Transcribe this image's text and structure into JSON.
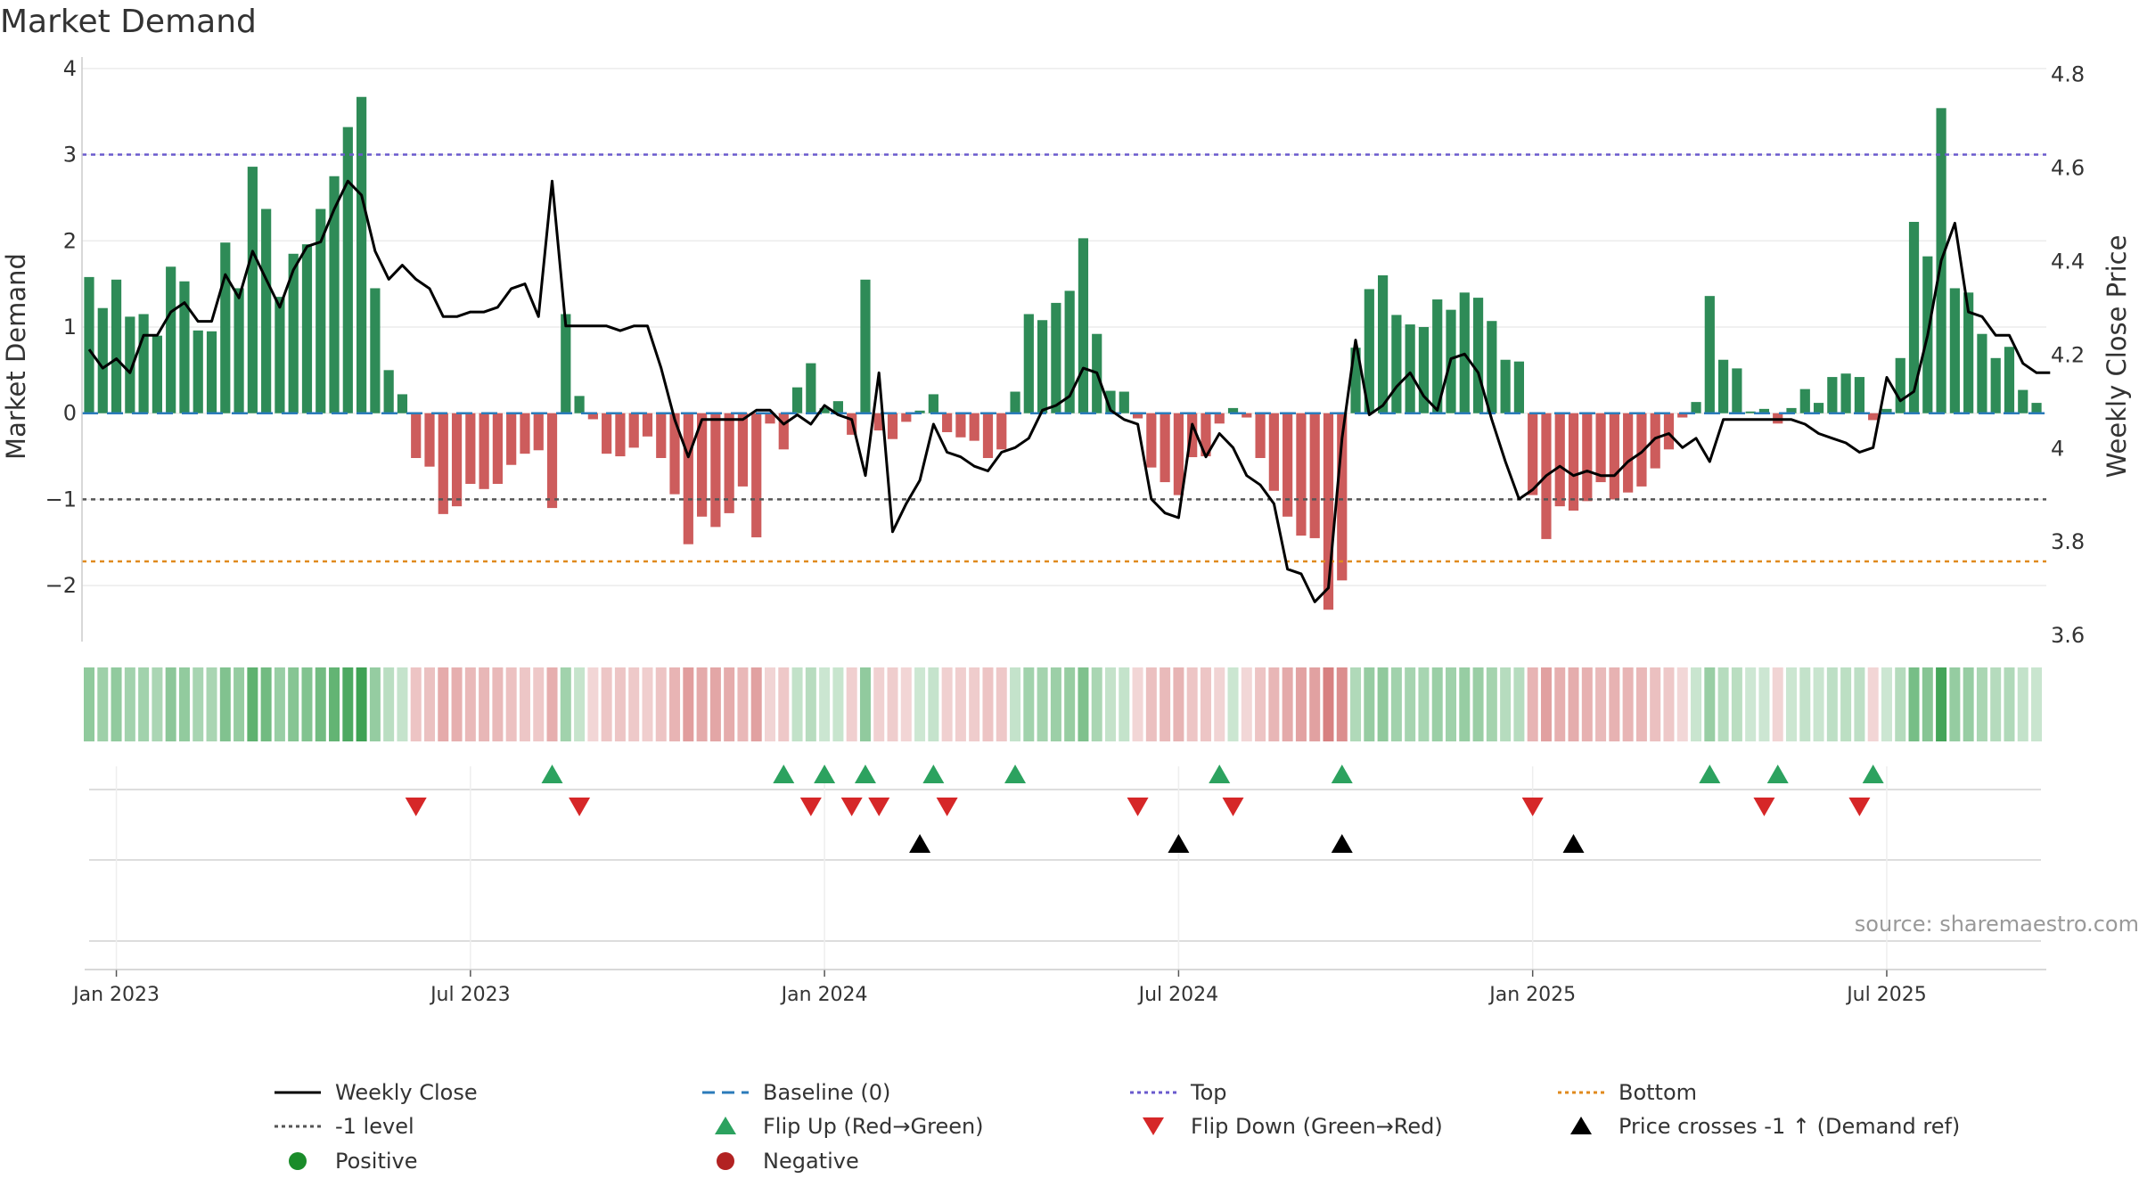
{
  "title": "Market Demand",
  "source": "source: sharemaestro.com",
  "chart_data": {
    "type": "bar+line",
    "title": "Market Demand",
    "ylabel_left": "Market Demand",
    "ylabel_right": "Weekly Close Price",
    "ylim_left": [
      -2.65,
      4.05
    ],
    "ylim_right": [
      3.585,
      4.82
    ],
    "yticks_left": [
      4,
      3,
      2,
      1,
      0,
      -1,
      -2
    ],
    "yticks_left_labels": [
      "4",
      "3",
      "2",
      "1",
      "0",
      "−1",
      "−2"
    ],
    "yticks_right": [
      4.8,
      4.6,
      4.4,
      4.2,
      4.0,
      3.8,
      3.6
    ],
    "yticks_right_labels": [
      "4.8",
      "4.6",
      "4.4",
      "4.2",
      "4",
      "3.8",
      "3.6"
    ],
    "xticks": [
      "Jan 2023",
      "Jul 2023",
      "Jan 2024",
      "Jul 2024",
      "Jan 2025",
      "Jul 2025"
    ],
    "xticks_week": [
      2,
      28,
      54,
      80,
      106,
      132
    ],
    "reference_lines": {
      "top": 3.0,
      "baseline": 0,
      "minus_one": -1,
      "bottom": -1.72
    },
    "demand": [
      1.58,
      1.22,
      1.55,
      1.12,
      1.15,
      0.9,
      1.7,
      1.53,
      0.96,
      0.95,
      1.98,
      1.45,
      2.86,
      2.37,
      1.35,
      1.85,
      1.96,
      2.37,
      2.75,
      3.32,
      3.67,
      1.45,
      0.5,
      0.22,
      -0.52,
      -0.62,
      -1.17,
      -1.08,
      -0.82,
      -0.88,
      -0.82,
      -0.6,
      -0.47,
      -0.43,
      -1.1,
      1.15,
      0.2,
      -0.07,
      -0.47,
      -0.5,
      -0.4,
      -0.27,
      -0.52,
      -0.94,
      -1.52,
      -1.2,
      -1.32,
      -1.16,
      -0.85,
      -1.44,
      -0.12,
      -0.42,
      0.3,
      0.58,
      0.06,
      0.14,
      -0.25,
      1.55,
      -0.2,
      -0.3,
      -0.1,
      0.03,
      0.22,
      -0.22,
      -0.28,
      -0.32,
      -0.52,
      -0.42,
      0.25,
      1.15,
      1.08,
      1.28,
      1.42,
      2.03,
      0.92,
      0.26,
      0.25,
      -0.06,
      -0.63,
      -0.8,
      -0.95,
      -0.51,
      -0.5,
      -0.12,
      0.06,
      -0.05,
      -0.52,
      -0.9,
      -1.2,
      -1.42,
      -1.45,
      -2.28,
      -1.94,
      0.76,
      1.44,
      1.6,
      1.14,
      1.03,
      1.0,
      1.32,
      1.2,
      1.4,
      1.34,
      1.07,
      0.62,
      0.6,
      -0.95,
      -1.46,
      -1.08,
      -1.13,
      -1.02,
      -0.8,
      -1.0,
      -0.92,
      -0.85,
      -0.64,
      -0.42,
      -0.05,
      0.13,
      1.36,
      0.62,
      0.52,
      0.02,
      0.05,
      -0.12,
      0.06,
      0.28,
      0.12,
      0.42,
      0.46,
      0.42,
      -0.08,
      0.05,
      0.64,
      2.22,
      1.82,
      3.54,
      1.45,
      1.4,
      0.92,
      0.64,
      0.77,
      0.27,
      0.12
    ],
    "weekly_close": [
      4.21,
      4.17,
      4.19,
      4.16,
      4.24,
      4.24,
      4.29,
      4.31,
      4.27,
      4.27,
      4.37,
      4.32,
      4.42,
      4.36,
      4.3,
      4.38,
      4.43,
      4.44,
      4.51,
      4.57,
      4.54,
      4.42,
      4.36,
      4.39,
      4.36,
      4.34,
      4.28,
      4.28,
      4.29,
      4.29,
      4.3,
      4.34,
      4.35,
      4.28,
      4.57,
      4.26,
      4.26,
      4.26,
      4.26,
      4.25,
      4.26,
      4.26,
      4.17,
      4.06,
      3.98,
      4.06,
      4.06,
      4.06,
      4.06,
      4.08,
      4.08,
      4.05,
      4.07,
      4.05,
      4.09,
      4.07,
      4.06,
      3.94,
      4.16,
      3.82,
      3.88,
      3.93,
      4.05,
      3.99,
      3.98,
      3.96,
      3.95,
      3.99,
      4.0,
      4.02,
      4.08,
      4.09,
      4.11,
      4.17,
      4.16,
      4.08,
      4.06,
      4.05,
      3.89,
      3.86,
      3.85,
      4.05,
      3.98,
      4.03,
      4.0,
      3.94,
      3.92,
      3.88,
      3.74,
      3.73,
      3.67,
      3.7,
      4.02,
      4.23,
      4.07,
      4.09,
      4.13,
      4.16,
      4.11,
      4.08,
      4.19,
      4.2,
      4.16,
      4.06,
      3.97,
      3.89,
      3.91,
      3.94,
      3.96,
      3.94,
      3.95,
      3.94,
      3.94,
      3.97,
      3.99,
      4.02,
      4.03,
      4.0,
      4.02,
      3.97,
      4.06,
      4.06,
      4.06,
      4.06,
      4.06,
      4.06,
      4.05,
      4.03,
      4.02,
      4.01,
      3.99,
      4.0,
      4.15,
      4.1,
      4.12,
      4.24,
      4.4,
      4.48,
      4.29,
      4.28,
      4.24,
      4.24,
      4.18,
      4.16,
      4.16
    ],
    "flip_up_weeks": [
      34,
      51,
      54,
      57,
      62,
      68,
      83,
      92,
      119,
      124,
      131
    ],
    "flip_down_weeks": [
      24,
      36,
      53,
      56,
      58,
      63,
      77,
      84,
      106,
      123,
      130
    ],
    "price_cross_weeks": [
      61,
      80,
      92,
      109
    ],
    "legend": [
      {
        "label": "Weekly Close",
        "symbol": "solid-line",
        "color": "#000000"
      },
      {
        "label": "Baseline (0)",
        "symbol": "dashed-line",
        "color": "#2b7bba"
      },
      {
        "label": "Top",
        "symbol": "dotted-line",
        "color": "#6a5acd"
      },
      {
        "label": "Bottom",
        "symbol": "dotted-line",
        "color": "#e08a1e"
      },
      {
        "label": "-1 level",
        "symbol": "dotted-line",
        "color": "#555555"
      },
      {
        "label": "Flip Up (Red→Green)",
        "symbol": "triangle-up",
        "color": "#2ca25f"
      },
      {
        "label": "Flip Down (Green→Red)",
        "symbol": "triangle-down",
        "color": "#d62728"
      },
      {
        "label": "Price crosses -1 ↑ (Demand ref)",
        "symbol": "triangle-up",
        "color": "#000000"
      },
      {
        "label": "Positive",
        "symbol": "circle",
        "color": "#1a8c2a"
      },
      {
        "label": "Negative",
        "symbol": "circle",
        "color": "#b22222"
      }
    ]
  },
  "colors": {
    "positive_bar": "#2e8b57",
    "negative_bar": "#cd5c5c",
    "strip_positive": "#3aa050",
    "strip_negative": "#c85050"
  }
}
